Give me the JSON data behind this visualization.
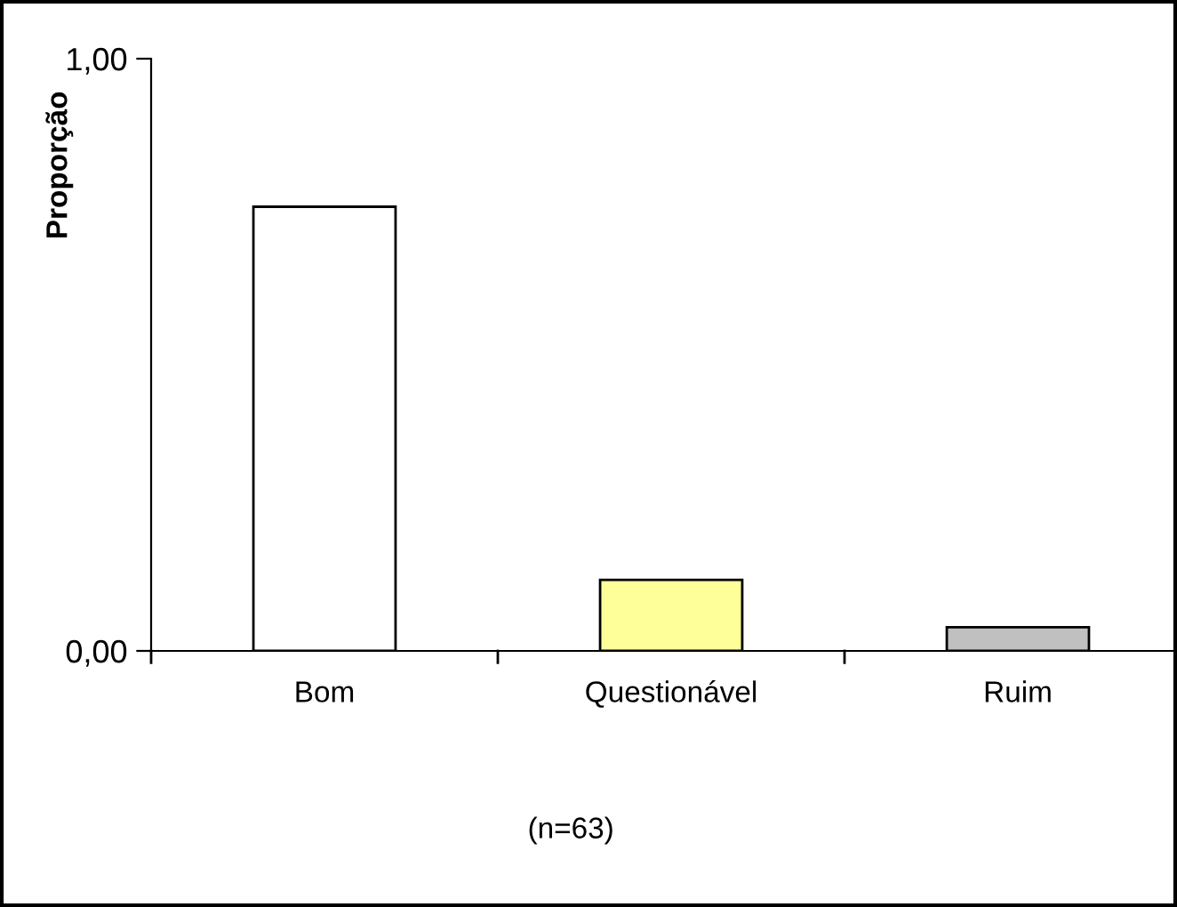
{
  "chart_data": {
    "type": "bar",
    "ylabel": "Proporção",
    "categories": [
      "Bom",
      "Questionável",
      "Ruim"
    ],
    "values": [
      0.75,
      0.12,
      0.04
    ],
    "colors": [
      "#ffffff",
      "#ffff99",
      "#c0c0c0"
    ],
    "ylim": [
      0,
      1
    ],
    "yticks": [
      {
        "value": 0,
        "label": "0,00"
      },
      {
        "value": 1,
        "label": "1,00"
      }
    ],
    "grid": false,
    "annotations": [
      "(n=63)"
    ]
  }
}
